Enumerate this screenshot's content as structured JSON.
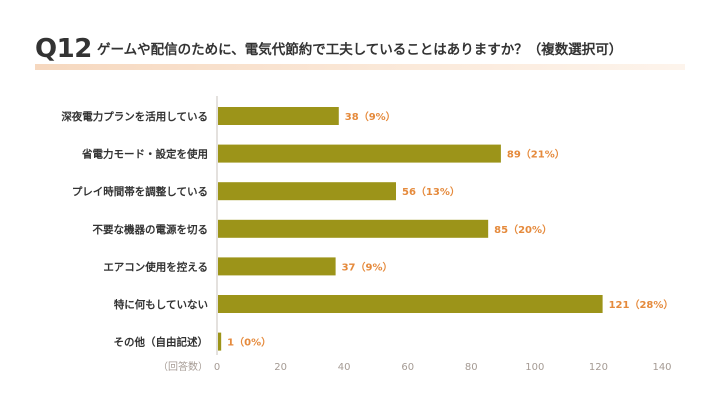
{
  "header": {
    "question_number": "Q12",
    "title": "ゲームや配信のために、電気代節約で工夫していることはありますか？（複数選択可）"
  },
  "colors": {
    "bar": "#9c9419",
    "value_label": "#e58a3c",
    "axis": "#c9c3bd",
    "tick": "#a59b94"
  },
  "chart_data": {
    "type": "bar",
    "orientation": "horizontal",
    "title": "ゲームや配信のために、電気代節約で工夫していることはありますか？（複数選択可）",
    "categories": [
      "深夜電力プランを活用している",
      "省電力モード・設定を使用",
      "プレイ時間帯を調整している",
      "不要な機器の電源を切る",
      "エアコン使用を控える",
      "特に何もしていない",
      "その他（自由記述）"
    ],
    "values": [
      38,
      89,
      56,
      85,
      37,
      121,
      1
    ],
    "value_labels": [
      "38（9%）",
      "89（21%）",
      "56（13%）",
      "85（20%）",
      "37（9%）",
      "121（28%）",
      "1（0%）"
    ],
    "xlabel": "（回答数）",
    "xlim": [
      0,
      140
    ],
    "xticks": [
      0,
      20,
      40,
      60,
      80,
      100,
      120,
      140
    ],
    "xtick_labels": [
      "0",
      "20",
      "40",
      "60",
      "80",
      "100",
      "120",
      "140"
    ],
    "grid": false,
    "legend": "none"
  }
}
